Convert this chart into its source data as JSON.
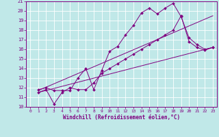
{
  "title": "",
  "xlabel": "Windchill (Refroidissement éolien,°C)",
  "bg_color": "#c0e8e8",
  "line_color": "#800080",
  "grid_color": "#b0d8d8",
  "xlim": [
    -0.5,
    23.5
  ],
  "ylim": [
    10,
    21
  ],
  "yticks": [
    10,
    11,
    12,
    13,
    14,
    15,
    16,
    17,
    18,
    19,
    20,
    21
  ],
  "xticks": [
    0,
    1,
    2,
    3,
    4,
    5,
    6,
    7,
    8,
    9,
    10,
    11,
    12,
    13,
    14,
    15,
    16,
    17,
    18,
    19,
    20,
    21,
    22,
    23
  ],
  "series": [
    {
      "x": [
        1,
        2,
        3,
        4,
        5,
        6,
        7,
        8,
        9,
        10,
        11,
        12,
        13,
        14,
        15,
        16,
        17,
        18,
        19,
        20,
        21,
        22,
        23
      ],
      "y": [
        11.8,
        12.0,
        11.7,
        11.7,
        11.7,
        13.0,
        14.0,
        11.8,
        13.8,
        15.8,
        16.3,
        17.5,
        18.5,
        19.8,
        20.3,
        19.7,
        20.3,
        20.8,
        19.4,
        17.2,
        16.5,
        16.0,
        16.2
      ],
      "markers": true
    },
    {
      "x": [
        1,
        2,
        3,
        4,
        5,
        6,
        7,
        8,
        9,
        10,
        11,
        12,
        13,
        14,
        15,
        16,
        17,
        18,
        19,
        20,
        21,
        22,
        23
      ],
      "y": [
        11.5,
        11.8,
        10.3,
        11.5,
        12.0,
        11.8,
        11.8,
        12.5,
        13.5,
        14.0,
        14.5,
        15.0,
        15.5,
        16.0,
        16.5,
        17.0,
        17.5,
        18.0,
        19.5,
        16.8,
        16.2,
        15.9,
        16.2
      ],
      "markers": true
    },
    {
      "x": [
        1,
        23
      ],
      "y": [
        11.7,
        19.5
      ],
      "markers": false
    },
    {
      "x": [
        1,
        23
      ],
      "y": [
        11.5,
        16.2
      ],
      "markers": false
    }
  ]
}
